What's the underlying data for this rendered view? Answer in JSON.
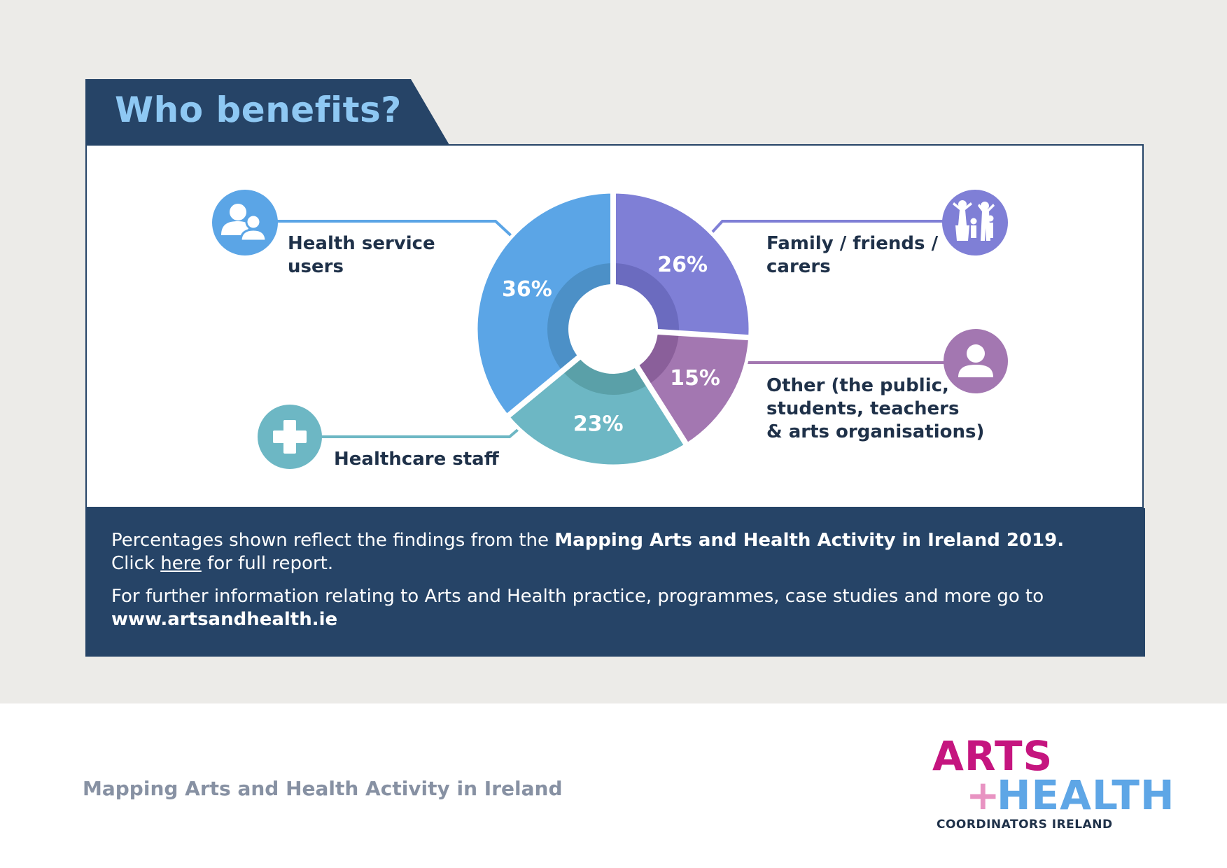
{
  "title": "Who benefits?",
  "chart_data": {
    "type": "pie",
    "title": "Who benefits?",
    "categories": [
      "Health service users",
      "Family / friends / carers",
      "Other (the public, students, teachers & arts organisations)",
      "Healthcare staff"
    ],
    "values": [
      36,
      26,
      15,
      23
    ],
    "value_labels": [
      "36%",
      "26%",
      "15%",
      "23%"
    ],
    "colors": [
      "#5ba5e6",
      "#7f7fd6",
      "#a377b1",
      "#6db7c4"
    ],
    "inner_colors": [
      "#4c90c7",
      "#6b6bbf",
      "#8a5f9a",
      "#5aa0a8"
    ],
    "donut": true,
    "label_lines": [
      "Health service",
      "users"
    ],
    "family_lines": [
      "Family / friends /",
      "carers"
    ],
    "other_lines": [
      "Other (the public,",
      "students, teachers",
      "& arts organisations)"
    ],
    "staff_lines": [
      "Healthcare staff"
    ],
    "icons": [
      "users-icon",
      "family-icon",
      "person-icon",
      "medical-cross-icon"
    ]
  },
  "info": {
    "line1_pre": "Percentages shown reflect the findings from the ",
    "line1_bold": "Mapping Arts and Health Activity in Ireland 2019.",
    "line2_pre": "Click ",
    "line2_link": "here",
    "line2_post": " for full report.",
    "line3": "For further information relating to Arts and Health practice, programmes, case studies and more go to",
    "url": "www.artsandhealth.ie"
  },
  "footer": {
    "title": "Mapping Arts and Health Activity in Ireland",
    "logo_arts": "ARTS",
    "logo_plus": "+",
    "logo_health": "HEALTH",
    "logo_sub": "COORDINATORS IRELAND"
  }
}
